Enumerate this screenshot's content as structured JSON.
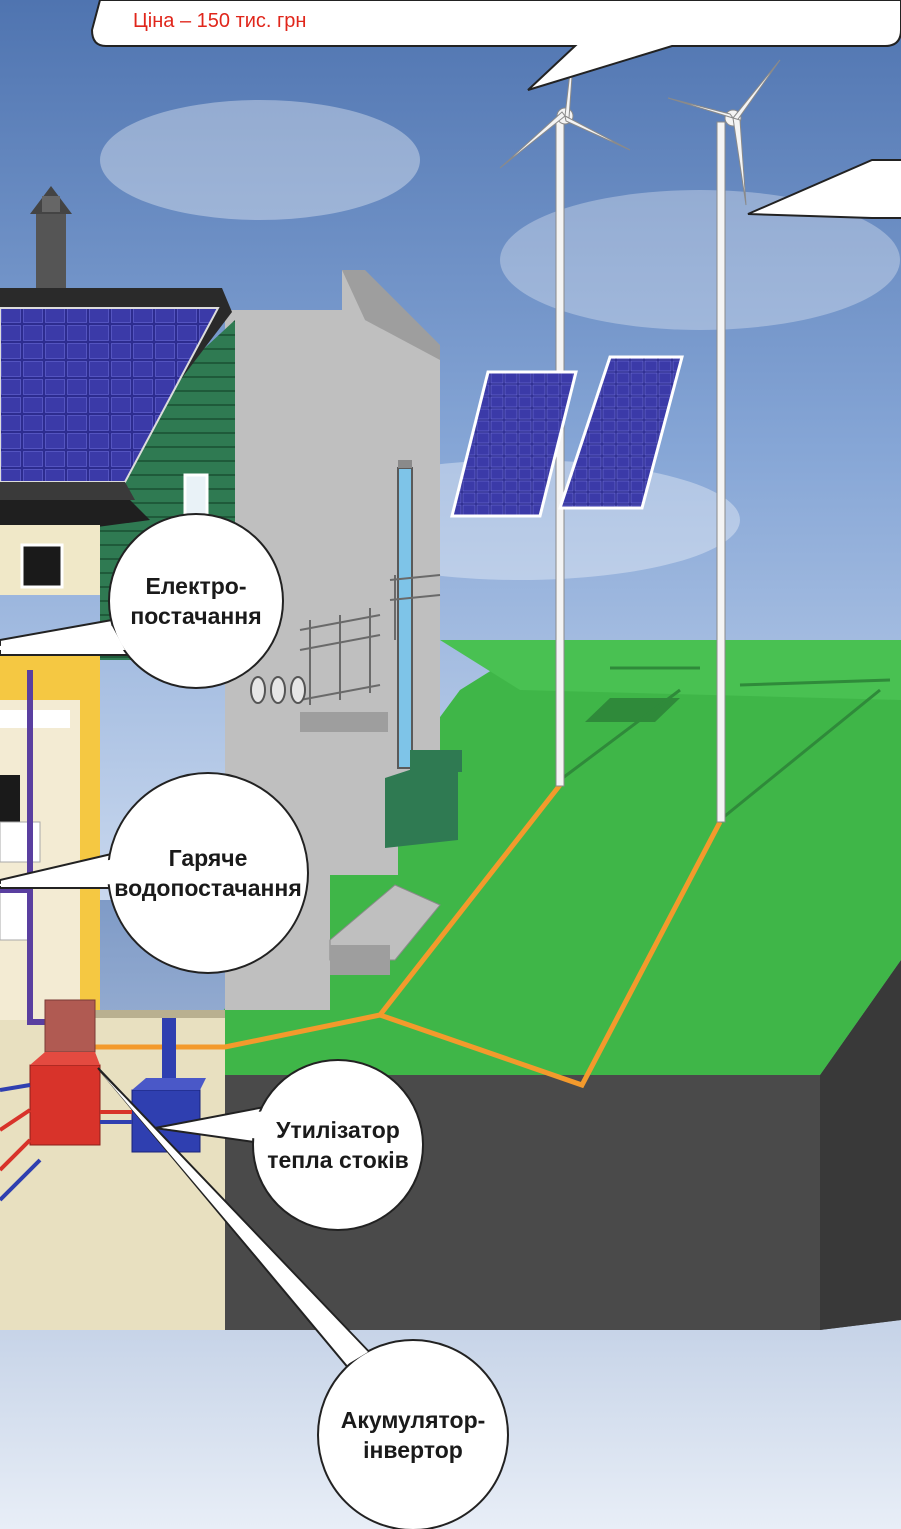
{
  "top_box": {
    "price": "Ціна – 150 тис. грн"
  },
  "callouts": {
    "power_supply": [
      "Електро-",
      "постачання"
    ],
    "hot_water": [
      "Гаряче",
      "водопостачання"
    ],
    "heat_recovery": [
      "Утилізатор",
      "тепла стоків"
    ],
    "battery_inverter": [
      "Акумулятор-",
      "інвертор"
    ]
  },
  "colors": {
    "sky": "#6f92c4",
    "grass": "#3fb648",
    "soil": "#4a4a4a",
    "solar_panel": "#2d2c8f",
    "wall_green": "#2f7a52",
    "wall_grey": "#bfbfbf",
    "cable_orange": "#f39a2c",
    "pipe_purple": "#5a3fa0",
    "boiler_red": "#d8332a",
    "heat_exchanger_blue": "#2f3fb0"
  }
}
